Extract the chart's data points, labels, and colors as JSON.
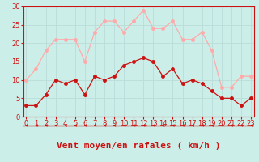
{
  "x": [
    0,
    1,
    2,
    3,
    4,
    5,
    6,
    7,
    8,
    9,
    10,
    11,
    12,
    13,
    14,
    15,
    16,
    17,
    18,
    19,
    20,
    21,
    22,
    23
  ],
  "wind_avg": [
    3,
    3,
    6,
    10,
    9,
    10,
    6,
    11,
    10,
    11,
    14,
    15,
    16,
    15,
    11,
    13,
    9,
    10,
    9,
    7,
    5,
    5,
    3,
    5
  ],
  "wind_gust": [
    10,
    13,
    18,
    21,
    21,
    21,
    15,
    23,
    26,
    26,
    23,
    26,
    29,
    24,
    24,
    26,
    21,
    21,
    23,
    18,
    8,
    8,
    11,
    11
  ],
  "bg_color": "#cceee8",
  "grid_color": "#bbddda",
  "line_avg_color": "#cc1111",
  "line_gust_color": "#ffaaaa",
  "xlabel": "Vent moyen/en rafales ( km/h )",
  "xlabel_color": "#cc1111",
  "tick_color": "#cc1111",
  "ylim": [
    0,
    30
  ],
  "yticks": [
    0,
    5,
    10,
    15,
    20,
    25,
    30
  ],
  "arrow_color": "#cc1111",
  "axis_fontsize": 6,
  "xlabel_fontsize": 8
}
